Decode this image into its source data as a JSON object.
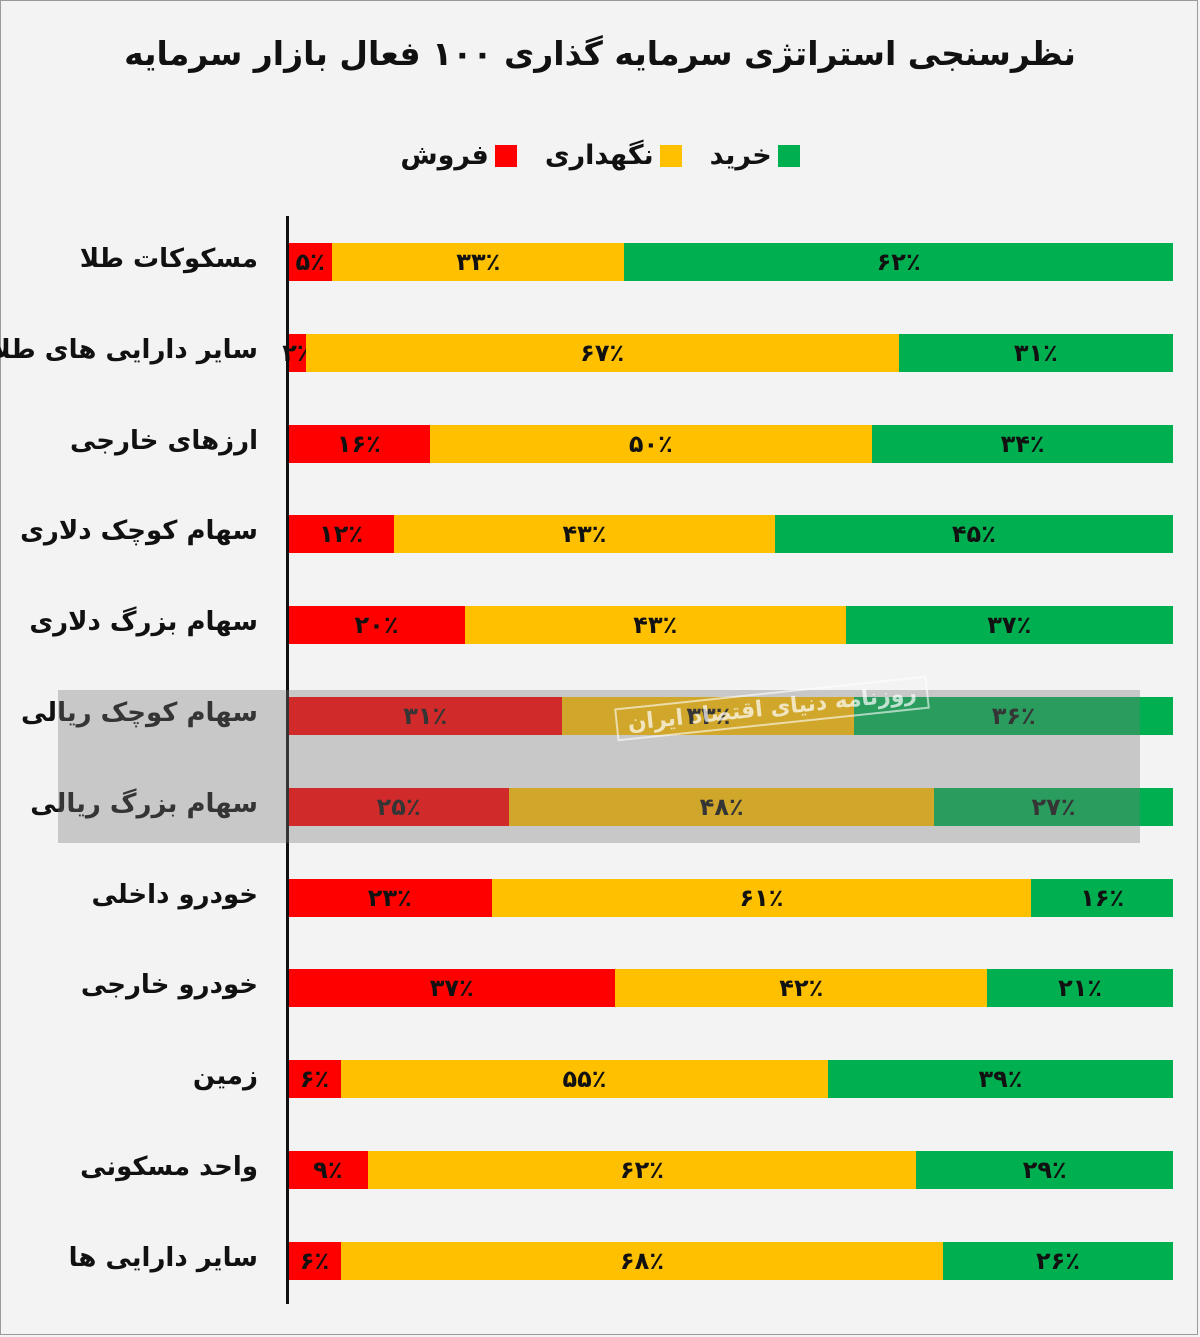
{
  "chart_data": {
    "type": "bar",
    "orientation": "horizontal-stacked-100",
    "title": "نظرسنجی استراتژی سرمایه گذاری ۱۰۰ فعال بازار سرمایه",
    "legend_placement": "top-center",
    "categories": [
      "مسکوکات طلا",
      "سایر دارایی های طلا",
      "ارزهای خارجی",
      "سهام کوچک دلاری",
      "سهام بزرگ دلاری",
      "سهام کوچک ریالی",
      "سهام بزرگ ریالی",
      "خودرو داخلی",
      "خودرو خارجی",
      "زمین",
      "واحد مسکونی",
      "سایر دارایی ها"
    ],
    "series": [
      {
        "name": "فروش",
        "color": "#ff0000",
        "values": [
          5,
          2,
          16,
          12,
          20,
          31,
          25,
          23,
          37,
          6,
          9,
          6
        ],
        "labels": [
          "۵٪",
          "۲٪",
          "۱۶٪",
          "۱۲٪",
          "۲۰٪",
          "۳۱٪",
          "۲۵٪",
          "۲۳٪",
          "۳۷٪",
          "۶٪",
          "۹٪",
          "۶٪"
        ]
      },
      {
        "name": "نگهداری",
        "color": "#ffc000",
        "values": [
          33,
          67,
          50,
          43,
          43,
          33,
          48,
          61,
          42,
          55,
          62,
          68
        ],
        "labels": [
          "۳۳٪",
          "۶۷٪",
          "۵۰٪",
          "۴۳٪",
          "۴۳٪",
          "۳۳٪",
          "۴۸٪",
          "۶۱٪",
          "۴۲٪",
          "۵۵٪",
          "۶۲٪",
          "۶۸٪"
        ]
      },
      {
        "name": "خرید",
        "color": "#00b050",
        "values": [
          62,
          31,
          34,
          45,
          37,
          36,
          27,
          16,
          21,
          39,
          29,
          26
        ],
        "labels": [
          "۶۲٪",
          "۳۱٪",
          "۳۴٪",
          "۴۵٪",
          "۳۷٪",
          "۳۶٪",
          "۲۷٪",
          "۱۶٪",
          "۲۱٪",
          "۳۹٪",
          "۲۹٪",
          "۲۶٪"
        ]
      }
    ],
    "legend_order": [
      "خرید",
      "نگهداری",
      "فروش"
    ],
    "xlim": [
      0,
      100
    ],
    "grid": false
  },
  "watermark": {
    "text": "روزنامه دنیای اقتصاد ایران",
    "color": "#787878"
  }
}
